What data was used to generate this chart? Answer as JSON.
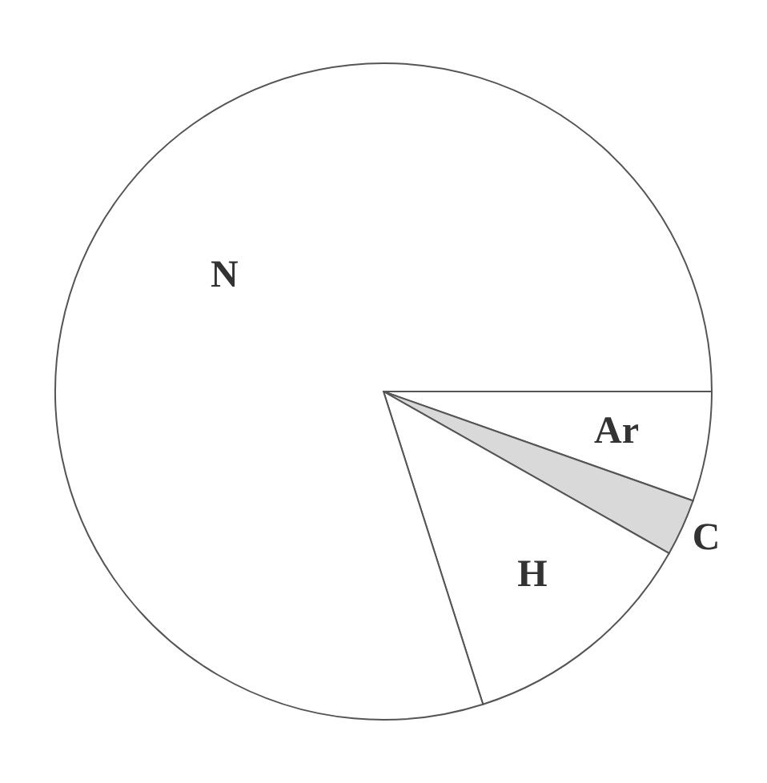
{
  "chart_data": {
    "type": "pie",
    "categories": [
      "Ar",
      "C",
      "H",
      "N"
    ],
    "values": [
      5.4,
      2.8,
      11.9,
      79.9
    ],
    "colors": [
      "#ffffff",
      "#d9d9d9",
      "#ffffff",
      "#ffffff"
    ]
  }
}
